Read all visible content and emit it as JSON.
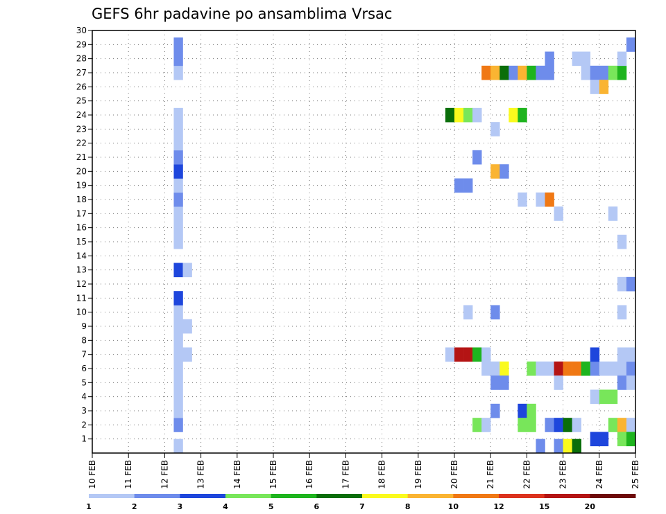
{
  "chart_data": {
    "type": "heatmap",
    "title": "GEFS 6hr padavine po ansamblima Vrsac",
    "xlabel": "",
    "ylabel": "",
    "x_ticks": [
      "10 FEB",
      "11 FEB",
      "12 FEB",
      "13 FEB",
      "14 FEB",
      "15 FEB",
      "16 FEB",
      "17 FEB",
      "18 FEB",
      "19 FEB",
      "20 FEB",
      "21 FEB",
      "22 FEB",
      "23 FEB",
      "24 FEB",
      "25 FEB"
    ],
    "x_range_days": [
      10,
      25
    ],
    "y_ticks": [
      1,
      2,
      3,
      4,
      5,
      6,
      7,
      8,
      9,
      10,
      11,
      12,
      13,
      14,
      15,
      16,
      17,
      18,
      19,
      20,
      21,
      22,
      23,
      24,
      25,
      26,
      27,
      28,
      29,
      30
    ],
    "y_range": [
      0,
      30
    ],
    "grid": true,
    "colorbar": {
      "labels": [
        "1",
        "2",
        "3",
        "4",
        "5",
        "6",
        "7",
        "8",
        "10",
        "12",
        "15",
        "20"
      ],
      "colors": [
        "#b4c8f5",
        "#6e8ceb",
        "#1e46dc",
        "#78e65a",
        "#1eb41e",
        "#0a6e0a",
        "#fafa1e",
        "#fab432",
        "#f07814",
        "#dc321e",
        "#b41414",
        "#6e0a0a"
      ]
    },
    "cells": [
      {
        "day": 12.25,
        "member": 0,
        "color": "#b4c8f5"
      },
      {
        "day": 12.25,
        "member": 2,
        "color": "#6e8ceb"
      },
      {
        "day": 12.25,
        "member": 3,
        "color": "#b4c8f5"
      },
      {
        "day": 12.25,
        "member": 4,
        "color": "#b4c8f5"
      },
      {
        "day": 12.25,
        "member": 5,
        "color": "#b4c8f5"
      },
      {
        "day": 12.25,
        "member": 6,
        "color": "#b4c8f5"
      },
      {
        "day": 12.25,
        "member": 7,
        "color": "#b4c8f5"
      },
      {
        "day": 12.25,
        "member": 8,
        "color": "#b4c8f5"
      },
      {
        "day": 12.25,
        "member": 9,
        "color": "#b4c8f5"
      },
      {
        "day": 12.5,
        "member": 9,
        "color": "#b4c8f5"
      },
      {
        "day": 12.25,
        "member": 10,
        "color": "#b4c8f5"
      },
      {
        "day": 12.25,
        "member": 11,
        "color": "#1e46dc"
      },
      {
        "day": 12.25,
        "member": 13,
        "color": "#1e46dc"
      },
      {
        "day": 12.5,
        "member": 13,
        "color": "#b4c8f5"
      },
      {
        "day": 12.25,
        "member": 15,
        "color": "#b4c8f5"
      },
      {
        "day": 12.25,
        "member": 16,
        "color": "#b4c8f5"
      },
      {
        "day": 12.25,
        "member": 17,
        "color": "#b4c8f5"
      },
      {
        "day": 12.25,
        "member": 18,
        "color": "#6e8ceb"
      },
      {
        "day": 12.25,
        "member": 19,
        "color": "#b4c8f5"
      },
      {
        "day": 12.25,
        "member": 20,
        "color": "#1e46dc"
      },
      {
        "day": 12.25,
        "member": 21,
        "color": "#6e8ceb"
      },
      {
        "day": 12.25,
        "member": 22,
        "color": "#b4c8f5"
      },
      {
        "day": 12.25,
        "member": 23,
        "color": "#b4c8f5"
      },
      {
        "day": 12.25,
        "member": 24,
        "color": "#b4c8f5"
      },
      {
        "day": 12.25,
        "member": 27,
        "color": "#b4c8f5"
      },
      {
        "day": 12.25,
        "member": 28,
        "color": "#6e8ceb"
      },
      {
        "day": 12.25,
        "member": 29,
        "color": "#6e8ceb"
      },
      {
        "day": 12.5,
        "member": 7,
        "color": "#b4c8f5"
      },
      {
        "day": 19.75,
        "member": 7,
        "color": "#b4c8f5"
      },
      {
        "day": 20.0,
        "member": 7,
        "color": "#b41414"
      },
      {
        "day": 20.25,
        "member": 7,
        "color": "#b41414"
      },
      {
        "day": 20.5,
        "member": 7,
        "color": "#1eb41e"
      },
      {
        "day": 20.75,
        "member": 7,
        "color": "#b4c8f5"
      },
      {
        "day": 20.75,
        "member": 6,
        "color": "#b4c8f5"
      },
      {
        "day": 21.0,
        "member": 6,
        "color": "#b4c8f5"
      },
      {
        "day": 21.25,
        "member": 6,
        "color": "#fafa1e"
      },
      {
        "day": 21.0,
        "member": 5,
        "color": "#6e8ceb"
      },
      {
        "day": 21.25,
        "member": 5,
        "color": "#6e8ceb"
      },
      {
        "day": 21.0,
        "member": 3,
        "color": "#6e8ceb"
      },
      {
        "day": 20.5,
        "member": 2,
        "color": "#78e65a"
      },
      {
        "day": 20.75,
        "member": 2,
        "color": "#b4c8f5"
      },
      {
        "day": 20.25,
        "member": 10,
        "color": "#b4c8f5"
      },
      {
        "day": 21.0,
        "member": 10,
        "color": "#6e8ceb"
      },
      {
        "day": 20.5,
        "member": 21,
        "color": "#6e8ceb"
      },
      {
        "day": 21.0,
        "member": 20,
        "color": "#fab432"
      },
      {
        "day": 21.25,
        "member": 20,
        "color": "#6e8ceb"
      },
      {
        "day": 20.0,
        "member": 19,
        "color": "#6e8ceb"
      },
      {
        "day": 20.25,
        "member": 19,
        "color": "#6e8ceb"
      },
      {
        "day": 21.0,
        "member": 23,
        "color": "#b4c8f5"
      },
      {
        "day": 19.75,
        "member": 24,
        "color": "#0a6e0a"
      },
      {
        "day": 20.0,
        "member": 24,
        "color": "#fafa1e"
      },
      {
        "day": 20.25,
        "member": 24,
        "color": "#78e65a"
      },
      {
        "day": 20.5,
        "member": 24,
        "color": "#b4c8f5"
      },
      {
        "day": 21.5,
        "member": 24,
        "color": "#fafa1e"
      },
      {
        "day": 21.75,
        "member": 24,
        "color": "#1eb41e"
      },
      {
        "day": 20.75,
        "member": 27,
        "color": "#f07814"
      },
      {
        "day": 21.0,
        "member": 27,
        "color": "#fab432"
      },
      {
        "day": 21.25,
        "member": 27,
        "color": "#0a6e0a"
      },
      {
        "day": 21.5,
        "member": 27,
        "color": "#6e8ceb"
      },
      {
        "day": 21.75,
        "member": 27,
        "color": "#fab432"
      },
      {
        "day": 22.0,
        "member": 27,
        "color": "#1eb41e"
      },
      {
        "day": 22.25,
        "member": 27,
        "color": "#6e8ceb"
      },
      {
        "day": 22.5,
        "member": 27,
        "color": "#6e8ceb"
      },
      {
        "day": 22.5,
        "member": 28,
        "color": "#6e8ceb"
      },
      {
        "day": 23.25,
        "member": 28,
        "color": "#b4c8f5"
      },
      {
        "day": 23.5,
        "member": 28,
        "color": "#b4c8f5"
      },
      {
        "day": 23.5,
        "member": 27,
        "color": "#b4c8f5"
      },
      {
        "day": 23.75,
        "member": 27,
        "color": "#6e8ceb"
      },
      {
        "day": 24.0,
        "member": 27,
        "color": "#6e8ceb"
      },
      {
        "day": 24.25,
        "member": 27,
        "color": "#78e65a"
      },
      {
        "day": 24.5,
        "member": 27,
        "color": "#1eb41e"
      },
      {
        "day": 23.75,
        "member": 26,
        "color": "#b4c8f5"
      },
      {
        "day": 24.0,
        "member": 26,
        "color": "#fab432"
      },
      {
        "day": 24.5,
        "member": 28,
        "color": "#b4c8f5"
      },
      {
        "day": 24.75,
        "member": 29,
        "color": "#6e8ceb"
      },
      {
        "day": 21.75,
        "member": 18,
        "color": "#b4c8f5"
      },
      {
        "day": 22.25,
        "member": 18,
        "color": "#b4c8f5"
      },
      {
        "day": 22.5,
        "member": 18,
        "color": "#f07814"
      },
      {
        "day": 22.75,
        "member": 17,
        "color": "#b4c8f5"
      },
      {
        "day": 24.25,
        "member": 17,
        "color": "#b4c8f5"
      },
      {
        "day": 24.5,
        "member": 15,
        "color": "#b4c8f5"
      },
      {
        "day": 24.5,
        "member": 12,
        "color": "#b4c8f5"
      },
      {
        "day": 24.75,
        "member": 12,
        "color": "#6e8ceb"
      },
      {
        "day": 24.5,
        "member": 10,
        "color": "#b4c8f5"
      },
      {
        "day": 22.0,
        "member": 6,
        "color": "#78e65a"
      },
      {
        "day": 22.25,
        "member": 6,
        "color": "#b4c8f5"
      },
      {
        "day": 22.5,
        "member": 6,
        "color": "#b4c8f5"
      },
      {
        "day": 22.75,
        "member": 6,
        "color": "#b41414"
      },
      {
        "day": 23.0,
        "member": 6,
        "color": "#f07814"
      },
      {
        "day": 23.25,
        "member": 6,
        "color": "#f07814"
      },
      {
        "day": 23.5,
        "member": 6,
        "color": "#1eb41e"
      },
      {
        "day": 23.75,
        "member": 6,
        "color": "#6e8ceb"
      },
      {
        "day": 24.0,
        "member": 6,
        "color": "#b4c8f5"
      },
      {
        "day": 24.25,
        "member": 6,
        "color": "#b4c8f5"
      },
      {
        "day": 24.5,
        "member": 6,
        "color": "#b4c8f5"
      },
      {
        "day": 24.75,
        "member": 6,
        "color": "#6e8ceb"
      },
      {
        "day": 23.75,
        "member": 7,
        "color": "#1e46dc"
      },
      {
        "day": 24.5,
        "member": 7,
        "color": "#b4c8f5"
      },
      {
        "day": 24.75,
        "member": 7,
        "color": "#b4c8f5"
      },
      {
        "day": 22.75,
        "member": 5,
        "color": "#b4c8f5"
      },
      {
        "day": 24.5,
        "member": 5,
        "color": "#6e8ceb"
      },
      {
        "day": 24.75,
        "member": 5,
        "color": "#b4c8f5"
      },
      {
        "day": 23.75,
        "member": 4,
        "color": "#b4c8f5"
      },
      {
        "day": 24.0,
        "member": 4,
        "color": "#78e65a"
      },
      {
        "day": 24.25,
        "member": 4,
        "color": "#78e65a"
      },
      {
        "day": 21.75,
        "member": 3,
        "color": "#1e46dc"
      },
      {
        "day": 22.0,
        "member": 3,
        "color": "#78e65a"
      },
      {
        "day": 21.75,
        "member": 2,
        "color": "#78e65a"
      },
      {
        "day": 22.0,
        "member": 2,
        "color": "#78e65a"
      },
      {
        "day": 22.5,
        "member": 2,
        "color": "#6e8ceb"
      },
      {
        "day": 22.75,
        "member": 2,
        "color": "#1e46dc"
      },
      {
        "day": 23.0,
        "member": 2,
        "color": "#0a6e0a"
      },
      {
        "day": 23.25,
        "member": 2,
        "color": "#b4c8f5"
      },
      {
        "day": 24.25,
        "member": 2,
        "color": "#78e65a"
      },
      {
        "day": 24.5,
        "member": 2,
        "color": "#fab432"
      },
      {
        "day": 24.75,
        "member": 2,
        "color": "#b4c8f5"
      },
      {
        "day": 23.75,
        "member": 1,
        "color": "#1e46dc"
      },
      {
        "day": 24.0,
        "member": 1,
        "color": "#1e46dc"
      },
      {
        "day": 24.5,
        "member": 1,
        "color": "#78e65a"
      },
      {
        "day": 24.75,
        "member": 1,
        "color": "#1eb41e"
      },
      {
        "day": 22.25,
        "member": 0,
        "color": "#6e8ceb"
      },
      {
        "day": 22.75,
        "member": 0,
        "color": "#6e8ceb"
      },
      {
        "day": 23.0,
        "member": 0,
        "color": "#fafa1e"
      },
      {
        "day": 23.25,
        "member": 0,
        "color": "#0a6e0a"
      }
    ]
  }
}
